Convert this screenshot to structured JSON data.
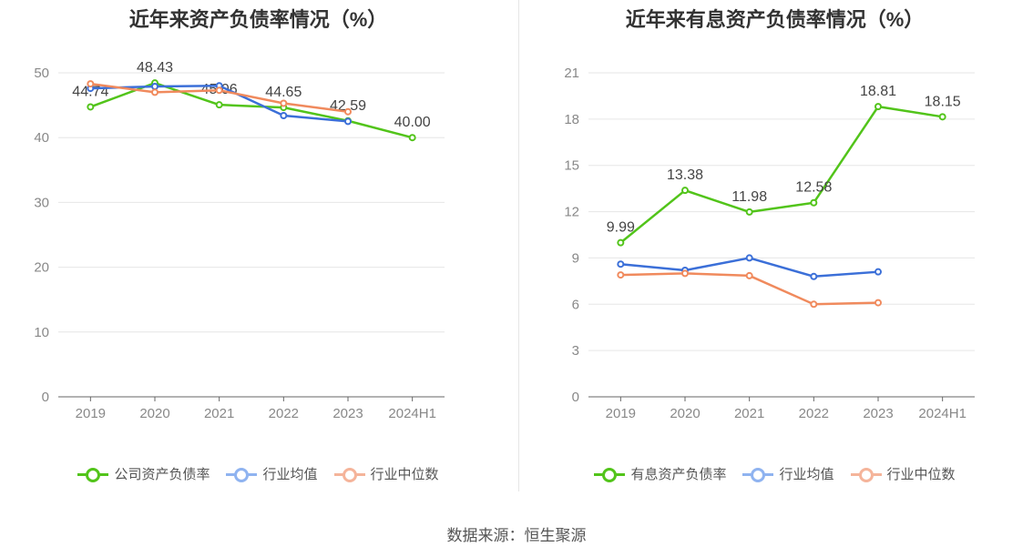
{
  "chart_data": [
    {
      "type": "line",
      "title": "近年来资产负债率情况（%）",
      "categories": [
        "2019",
        "2020",
        "2021",
        "2022",
        "2023",
        "2024H1"
      ],
      "ylim": [
        0,
        50
      ],
      "yticks": [
        0,
        10,
        20,
        30,
        40,
        50
      ],
      "grid": true,
      "legend_position": "bottom",
      "series": [
        {
          "name": "公司资产负债率",
          "color": "#52c41a",
          "values": [
            44.74,
            48.43,
            45.06,
            44.65,
            42.59,
            40.0
          ],
          "labels": [
            "44.74",
            "48.43",
            "45.06",
            "44.65",
            "42.59",
            "40.00"
          ]
        },
        {
          "name": "行业均值",
          "color": "#3b6fd8",
          "values": [
            47.6,
            47.9,
            48.0,
            43.4,
            42.5,
            null
          ]
        },
        {
          "name": "行业中位数",
          "color": "#f08a5d",
          "values": [
            48.3,
            47.0,
            47.3,
            45.3,
            44.0,
            null
          ]
        }
      ]
    },
    {
      "type": "line",
      "title": "近年来有息资产负债率情况（%）",
      "categories": [
        "2019",
        "2020",
        "2021",
        "2022",
        "2023",
        "2024H1"
      ],
      "ylim": [
        0,
        21
      ],
      "yticks": [
        0,
        3,
        6,
        9,
        12,
        15,
        18,
        21
      ],
      "grid": true,
      "legend_position": "bottom",
      "series": [
        {
          "name": "有息资产负债率",
          "color": "#52c41a",
          "values": [
            9.99,
            13.38,
            11.98,
            12.58,
            18.81,
            18.15
          ],
          "labels": [
            "9.99",
            "13.38",
            "11.98",
            "12.58",
            "18.81",
            "18.15"
          ]
        },
        {
          "name": "行业均值",
          "color": "#3b6fd8",
          "values": [
            8.6,
            8.2,
            9.0,
            7.8,
            8.1,
            null
          ]
        },
        {
          "name": "行业中位数",
          "color": "#f08a5d",
          "values": [
            7.9,
            8.0,
            7.85,
            6.0,
            6.1,
            null
          ]
        }
      ]
    }
  ],
  "legend_colors": {
    "company": "#52c41a",
    "avg": "#8fb3f0",
    "median": "#f5b49a"
  },
  "source": "数据来源：恒生聚源"
}
